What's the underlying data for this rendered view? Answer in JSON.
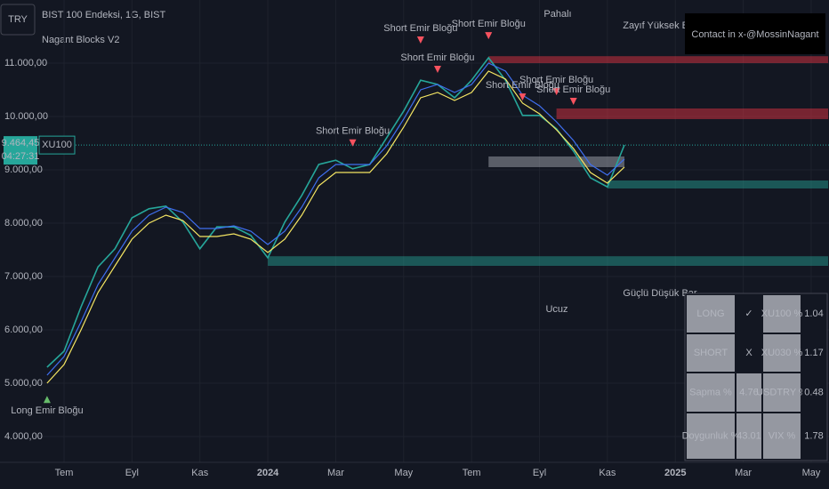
{
  "header": {
    "currency": "TRY",
    "symbol_title": "BIST 100 Endeksi, 1G, BIST",
    "indicator": "Nagant Blocks V2"
  },
  "chart_data": {
    "type": "line",
    "categories": [
      null,
      "Tem",
      null,
      null,
      null,
      "Eyl",
      null,
      null,
      null,
      "Kas",
      null,
      null,
      null,
      "2024",
      null,
      null,
      null,
      "Mar",
      null,
      null,
      null,
      "May",
      null,
      null,
      null,
      "Tem",
      null,
      null,
      null,
      "Eyl",
      null,
      null,
      null,
      "Kas",
      null,
      null,
      null,
      "2025",
      null,
      null,
      null,
      "Mar",
      null,
      null,
      null,
      "May",
      null
    ],
    "series": [
      {
        "name": "XU100",
        "color": "#26a69a",
        "values": [
          5300,
          5600,
          6430,
          7180,
          7520,
          8100,
          8270,
          8320,
          8020,
          7520,
          7930,
          7930,
          7770,
          7350,
          8020,
          8520,
          9100,
          9180,
          9020,
          9100,
          9600,
          10100,
          10680,
          10600,
          10350,
          10680,
          11100,
          10680,
          10020,
          10020,
          9770,
          9350,
          8850,
          8680,
          9464.45,
          null,
          null,
          null,
          null,
          null,
          null,
          null,
          null,
          null,
          null,
          null,
          null
        ]
      },
      {
        "color": "#f5e663",
        "values": [
          5000,
          5350,
          6000,
          6700,
          7200,
          7700,
          8000,
          8150,
          8050,
          7750,
          7750,
          7800,
          7700,
          7450,
          7700,
          8150,
          8700,
          8950,
          8950,
          8950,
          9300,
          9800,
          10350,
          10450,
          10300,
          10450,
          10850,
          10700,
          10250,
          10050,
          9750,
          9400,
          8950,
          8750,
          9050,
          null,
          null,
          null,
          null,
          null,
          null,
          null,
          null,
          null,
          null,
          null,
          null
        ]
      },
      {
        "color": "#3f6ff0",
        "values": [
          5150,
          5500,
          6150,
          6850,
          7350,
          7850,
          8150,
          8300,
          8200,
          7900,
          7900,
          7950,
          7850,
          7600,
          7850,
          8300,
          8850,
          9100,
          9100,
          9100,
          9450,
          9950,
          10500,
          10600,
          10450,
          10600,
          11000,
          10850,
          10400,
          10200,
          9900,
          9550,
          9100,
          8900,
          9200,
          null,
          null,
          null,
          null,
          null,
          null,
          null,
          null,
          null,
          null,
          null,
          null
        ]
      }
    ],
    "ylim": [
      3517,
      12183
    ],
    "yticks": [
      {
        "value": 4000,
        "label": "4.000,00"
      },
      {
        "value": 5000,
        "label": "5.000,00"
      },
      {
        "value": 6000,
        "label": "6.000,00"
      },
      {
        "value": 7000,
        "label": "7.000,00"
      },
      {
        "value": 8000,
        "label": "8.000,00"
      },
      {
        "value": 9000,
        "label": "9.000,00"
      },
      {
        "value": 10000,
        "label": "10.000,00"
      },
      {
        "value": 11000,
        "label": "11.000,00"
      }
    ],
    "grid": true,
    "last_price": {
      "value": 9464.45,
      "label": "9.464,45"
    },
    "countdown": "04:27:31",
    "zones": [
      {
        "low": 11000,
        "high": 11130,
        "start": 26,
        "end": 46,
        "color": "#f23645"
      },
      {
        "low": 9950,
        "high": 10150,
        "start": 30,
        "end": 46,
        "color": "#f23645"
      },
      {
        "low": 9050,
        "high": 9250,
        "start": 26,
        "end": 34,
        "color": "#b2b5be"
      },
      {
        "low": 7200,
        "high": 7380,
        "start": 13,
        "end": 46,
        "color": "#26a69a"
      },
      {
        "low": 8650,
        "high": 8800,
        "start": 33,
        "end": 46,
        "color": "#26a69a"
      }
    ],
    "annotations": [
      {
        "text": "Short Emir Bloğu",
        "x": 22,
        "y": 11650
      },
      {
        "text": "Short Emir Bloğu",
        "x": 23,
        "y": 11100
      },
      {
        "text": "Short Emir Bloğu",
        "x": 26,
        "y": 11730
      },
      {
        "text": "Short Emir Bloğu",
        "x": 18,
        "y": 9720
      },
      {
        "text": "Short Emir Bloğu",
        "x": 28,
        "y": 10580
      },
      {
        "text": "Short Emir Bloğu",
        "x": 30,
        "y": 10680
      },
      {
        "text": "Short Emir Bloğu",
        "x": 31,
        "y": 10500
      },
      {
        "text": "Long Emir Bloğu",
        "x": 0,
        "y": 4480
      }
    ],
    "labels": {
      "expensive": "Pahalı",
      "cheap": "Ucuz",
      "weak_high": "Zayıf Yüksek Bar",
      "strong_low": "Güçlü Düşük Bar",
      "contact": "Contact in x-@MossinNagant"
    }
  },
  "table": {
    "rows": [
      [
        "LONG",
        "✓",
        "XU100 %",
        "1.04"
      ],
      [
        "SHORT",
        "X",
        "XU030 %",
        "1.17"
      ],
      [
        "Sapma %",
        "4.76",
        "USDTRY %",
        "0.48"
      ],
      [
        "Doygunluk %",
        "43.01",
        "VIX %",
        "1.78"
      ]
    ]
  }
}
